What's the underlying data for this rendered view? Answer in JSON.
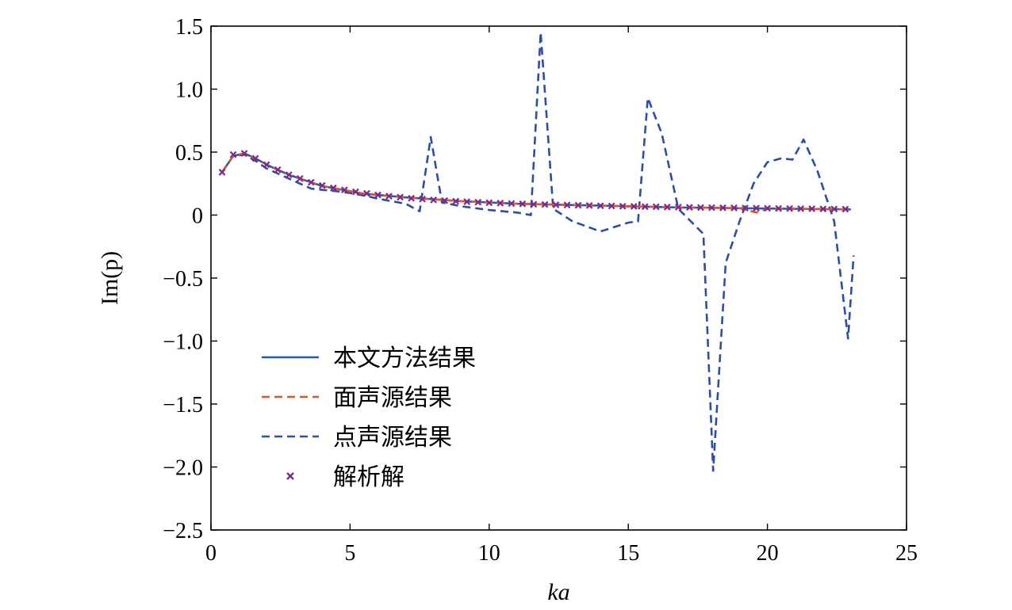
{
  "chart_data": {
    "type": "line",
    "xlabel": "ka",
    "ylabel": "Im(p)",
    "xlim": [
      0,
      25
    ],
    "ylim": [
      -2.5,
      1.5
    ],
    "x_ticks": [
      0,
      5,
      10,
      15,
      20,
      25
    ],
    "x_tick_labels": [
      "0",
      "5",
      "10",
      "15",
      "20",
      "25"
    ],
    "y_ticks": [
      1.5,
      1.0,
      0.5,
      0,
      -0.5,
      -1.0,
      -1.5,
      -2.0,
      -2.5
    ],
    "y_tick_labels": [
      "1.5",
      "1.0",
      "0.5",
      "0",
      "−0.5",
      "−1.0",
      "−1.5",
      "−2.0",
      "−2.5"
    ],
    "grid": false,
    "legend_position": "bottom-left",
    "colors": {
      "present_method": "#1f5fa8",
      "surface_source": "#e0522a",
      "point_source": "#2a4fa5",
      "analytical": "#7a2a8e"
    },
    "series": [
      {
        "name": "本文方法结果",
        "style": "solid",
        "color": "#1f5fa8",
        "x": [
          0.4,
          0.8,
          1.2,
          1.6,
          2.0,
          2.4,
          2.8,
          3.2,
          3.6,
          4.0,
          4.5,
          5.0,
          5.5,
          6.0,
          7.0,
          8.0,
          9.0,
          10.0,
          11.0,
          12.0,
          13.0,
          14.0,
          15.0,
          16.0,
          17.0,
          18.0,
          19.0,
          20.0,
          21.0,
          22.0,
          23.0
        ],
        "y": [
          0.34,
          0.47,
          0.49,
          0.45,
          0.4,
          0.36,
          0.32,
          0.29,
          0.26,
          0.23,
          0.21,
          0.19,
          0.17,
          0.16,
          0.14,
          0.125,
          0.11,
          0.1,
          0.09,
          0.085,
          0.08,
          0.075,
          0.07,
          0.065,
          0.06,
          0.058,
          0.055,
          0.052,
          0.05,
          0.048,
          0.045
        ]
      },
      {
        "name": "面声源结果",
        "style": "dashed",
        "color": "#e0522a",
        "x": [
          0.4,
          0.8,
          1.2,
          1.6,
          2.0,
          2.4,
          2.8,
          3.2,
          3.6,
          4.0,
          4.5,
          5.0,
          5.5,
          6.0,
          7.0,
          8.0,
          9.0,
          10.0,
          11.0,
          12.0,
          13.0,
          14.0,
          15.0,
          16.0,
          17.0,
          18.0,
          19.0,
          19.6,
          20.0,
          21.0,
          22.0,
          23.0
        ],
        "y": [
          0.34,
          0.47,
          0.49,
          0.45,
          0.4,
          0.36,
          0.32,
          0.29,
          0.26,
          0.23,
          0.21,
          0.19,
          0.17,
          0.16,
          0.14,
          0.125,
          0.11,
          0.1,
          0.09,
          0.085,
          0.08,
          0.075,
          0.07,
          0.065,
          0.06,
          0.058,
          0.055,
          0.02,
          0.05,
          0.05,
          0.048,
          0.045
        ]
      },
      {
        "name": "点声源结果",
        "style": "dashed",
        "color": "#2a4fa5",
        "x": [
          0.4,
          0.8,
          1.2,
          1.6,
          2.0,
          2.4,
          2.8,
          3.2,
          3.6,
          4.0,
          4.5,
          5.0,
          5.5,
          6.0,
          7.0,
          7.5,
          7.9,
          8.3,
          9.0,
          10.0,
          11.0,
          11.5,
          11.85,
          12.3,
          13.0,
          14.0,
          15.0,
          15.35,
          15.7,
          16.2,
          16.8,
          17.7,
          18.05,
          18.5,
          19.0,
          19.5,
          20.0,
          20.5,
          20.9,
          21.3,
          21.8,
          22.4,
          22.9,
          23.1
        ],
        "y": [
          0.34,
          0.47,
          0.48,
          0.43,
          0.37,
          0.33,
          0.29,
          0.25,
          0.21,
          0.2,
          0.19,
          0.175,
          0.155,
          0.13,
          0.09,
          0.03,
          0.62,
          0.1,
          0.07,
          0.04,
          0.02,
          0.0,
          1.45,
          0.05,
          -0.05,
          -0.13,
          -0.06,
          -0.05,
          0.93,
          0.65,
          0.05,
          -0.15,
          -2.03,
          -0.38,
          -0.05,
          0.25,
          0.42,
          0.45,
          0.44,
          0.6,
          0.35,
          -0.05,
          -0.98,
          -0.32
        ]
      },
      {
        "name": "解析解",
        "style": "markers",
        "color": "#7a2a8e",
        "x": [
          0.4,
          0.8,
          1.2,
          1.6,
          2.0,
          2.4,
          2.8,
          3.2,
          3.6,
          4.0,
          4.4,
          4.8,
          5.2,
          5.6,
          6.0,
          6.4,
          6.8,
          7.2,
          7.6,
          8.0,
          8.4,
          8.8,
          9.2,
          9.6,
          10.0,
          10.4,
          10.8,
          11.2,
          11.6,
          12.0,
          12.4,
          12.8,
          13.2,
          13.6,
          14.0,
          14.4,
          14.8,
          15.2,
          15.6,
          16.0,
          16.4,
          16.8,
          17.2,
          17.6,
          18.0,
          18.4,
          18.8,
          19.2,
          19.6,
          20.0,
          20.4,
          20.8,
          21.2,
          21.6,
          22.0,
          22.4,
          22.8
        ],
        "y": [
          0.34,
          0.48,
          0.49,
          0.45,
          0.4,
          0.36,
          0.32,
          0.29,
          0.26,
          0.235,
          0.215,
          0.2,
          0.185,
          0.172,
          0.16,
          0.15,
          0.142,
          0.134,
          0.127,
          0.12,
          0.115,
          0.11,
          0.106,
          0.102,
          0.098,
          0.095,
          0.092,
          0.089,
          0.086,
          0.084,
          0.082,
          0.08,
          0.078,
          0.076,
          0.074,
          0.072,
          0.07,
          0.069,
          0.067,
          0.066,
          0.064,
          0.063,
          0.061,
          0.06,
          0.059,
          0.058,
          0.057,
          0.056,
          0.055,
          0.054,
          0.053,
          0.052,
          0.051,
          0.05,
          0.049,
          0.048,
          0.047
        ]
      }
    ]
  }
}
